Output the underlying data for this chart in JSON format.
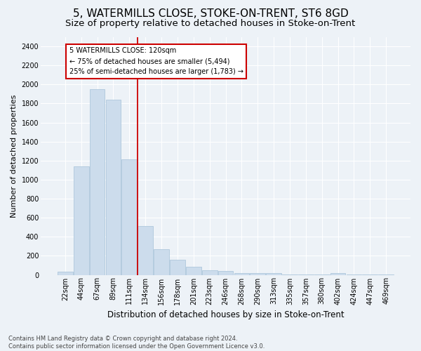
{
  "title": "5, WATERMILLS CLOSE, STOKE-ON-TRENT, ST6 8GD",
  "subtitle": "Size of property relative to detached houses in Stoke-on-Trent",
  "xlabel": "Distribution of detached houses by size in Stoke-on-Trent",
  "ylabel": "Number of detached properties",
  "footer_line1": "Contains HM Land Registry data © Crown copyright and database right 2024.",
  "footer_line2": "Contains public sector information licensed under the Open Government Licence v3.0.",
  "bar_labels": [
    "22sqm",
    "44sqm",
    "67sqm",
    "89sqm",
    "111sqm",
    "134sqm",
    "156sqm",
    "178sqm",
    "201sqm",
    "223sqm",
    "246sqm",
    "268sqm",
    "290sqm",
    "313sqm",
    "335sqm",
    "357sqm",
    "380sqm",
    "402sqm",
    "424sqm",
    "447sqm",
    "469sqm"
  ],
  "bar_values": [
    30,
    1140,
    1950,
    1840,
    1210,
    510,
    270,
    155,
    85,
    45,
    40,
    20,
    20,
    20,
    5,
    5,
    5,
    20,
    5,
    5,
    5
  ],
  "bar_color": "#ccdcec",
  "bar_edge_color": "#aec8dc",
  "vline_x": 4.5,
  "vline_color": "#cc0000",
  "annotation_text": "5 WATERMILLS CLOSE: 120sqm\n← 75% of detached houses are smaller (5,494)\n25% of semi-detached houses are larger (1,783) →",
  "ylim": [
    0,
    2500
  ],
  "yticks": [
    0,
    200,
    400,
    600,
    800,
    1000,
    1200,
    1400,
    1600,
    1800,
    2000,
    2200,
    2400
  ],
  "bg_color": "#edf2f7",
  "plot_bg_color": "#edf2f7",
  "title_fontsize": 11,
  "subtitle_fontsize": 9.5,
  "xlabel_fontsize": 8.5,
  "ylabel_fontsize": 8,
  "footer_fontsize": 6,
  "tick_fontsize": 7
}
